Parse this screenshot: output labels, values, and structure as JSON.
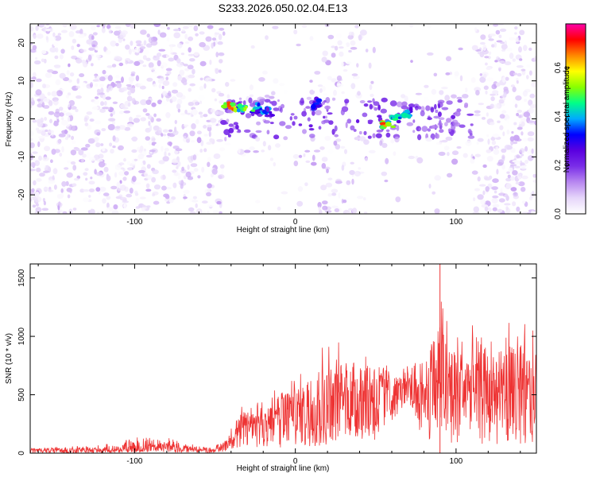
{
  "title": "S233.2026.050.02.04.E13",
  "colors": {
    "snr_line": "#ee3333",
    "spectrogram_colormap": [
      "#ffffff",
      "#e6d6fa",
      "#b888f0",
      "#7a2ee8",
      "#5a00e0",
      "#0000ff",
      "#00aaff",
      "#00ff88",
      "#88ff00",
      "#ffff00",
      "#ff8800",
      "#ff0000",
      "#ff00aa"
    ]
  },
  "chart_data": [
    {
      "type": "heatmap",
      "title": "S233.2026.050.02.04.E13",
      "xlabel": "Height of straight line (km)",
      "ylabel": "Frequency (Hz)",
      "xlim": [
        -165,
        150
      ],
      "ylim": [
        -25,
        25
      ],
      "xticks": [
        -100,
        0,
        100
      ],
      "yticks": [
        -20,
        -10,
        0,
        10,
        20
      ],
      "colorbar": {
        "label": "Normalized spectral amplitude",
        "range": [
          0.0,
          0.78
        ],
        "ticks": [
          "0.0",
          "0.2",
          "0.4",
          "0.6"
        ]
      },
      "bright_clusters": [
        {
          "x": -40,
          "y": 3.5,
          "value": 0.75
        },
        {
          "x": -33,
          "y": 3.0,
          "value": 0.6
        },
        {
          "x": -25,
          "y": 2.5,
          "value": 0.5
        },
        {
          "x": -18,
          "y": 2.0,
          "value": 0.4
        },
        {
          "x": 13,
          "y": 4.0,
          "value": 0.35
        },
        {
          "x": 56,
          "y": -1.0,
          "value": 0.7
        },
        {
          "x": 63,
          "y": 0.5,
          "value": 0.5
        },
        {
          "x": 70,
          "y": 1.5,
          "value": 0.45
        }
      ],
      "grid": false
    },
    {
      "type": "line",
      "xlabel": "Height of straight line (km)",
      "ylabel": "SNR (10 * v/v)",
      "xlim": [
        -165,
        150
      ],
      "ylim": [
        0,
        1620
      ],
      "xticks": [
        -100,
        0,
        100
      ],
      "yticks": [
        0,
        500,
        1000,
        1500
      ],
      "series": [
        {
          "x": [
            -165,
            -140,
            -120,
            -100,
            -90,
            -80,
            -70,
            -60,
            -50,
            -42,
            -36,
            -30,
            -20,
            -10,
            0,
            10,
            20,
            30,
            40,
            50,
            62,
            70,
            80,
            90,
            100,
            110,
            120,
            130,
            140,
            150
          ],
          "values": [
            30,
            25,
            25,
            35,
            60,
            45,
            40,
            30,
            25,
            80,
            180,
            250,
            280,
            340,
            380,
            440,
            480,
            520,
            520,
            560,
            550,
            560,
            520,
            600,
            600,
            540,
            520,
            540,
            520,
            520
          ],
          "peak_values": [
            40,
            60,
            70,
            140,
            170,
            140,
            100,
            60,
            60,
            160,
            380,
            480,
            520,
            640,
            650,
            880,
            960,
            950,
            900,
            900,
            700,
            800,
            850,
            1620,
            1050,
            1100,
            960,
            1160,
            1200,
            1060
          ],
          "trough_values": [
            0,
            0,
            0,
            5,
            10,
            5,
            5,
            0,
            0,
            20,
            40,
            60,
            40,
            30,
            40,
            50,
            50,
            60,
            80,
            100,
            300,
            450,
            100,
            80,
            80,
            80,
            60,
            80,
            60,
            80
          ]
        }
      ],
      "grid": false
    }
  ]
}
